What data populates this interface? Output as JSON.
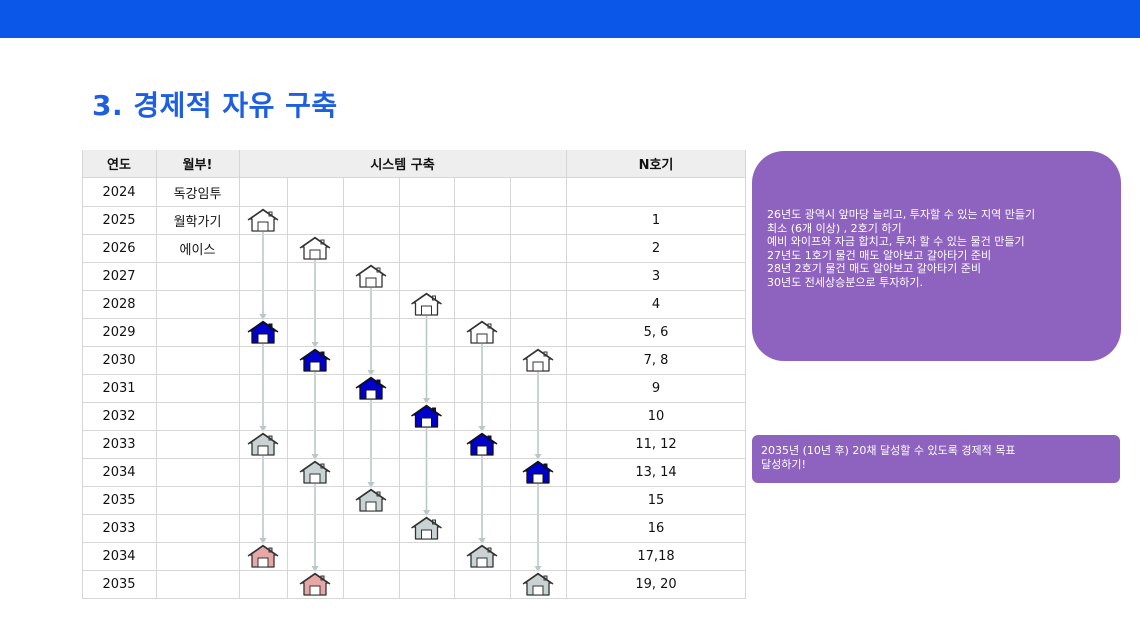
{
  "title": "3. 경제적 자유 구축",
  "table": {
    "headers": [
      "연도",
      "월부!",
      "시스템 구축",
      "N호기"
    ],
    "rows": [
      {
        "year": "2024",
        "label": "독강임투",
        "n": ""
      },
      {
        "year": "2025",
        "label": "월학가기",
        "n": "1"
      },
      {
        "year": "2026",
        "label": "에이스",
        "n": "2"
      },
      {
        "year": "2027",
        "label": "",
        "n": "3"
      },
      {
        "year": "2028",
        "label": "",
        "n": "4"
      },
      {
        "year": "2029",
        "label": "",
        "n": "5, 6"
      },
      {
        "year": "2030",
        "label": "",
        "n": "7, 8"
      },
      {
        "year": "2031",
        "label": "",
        "n": "9"
      },
      {
        "year": "2032",
        "label": "",
        "n": "10"
      },
      {
        "year": "2033",
        "label": "",
        "n": "11, 12"
      },
      {
        "year": "2034",
        "label": "",
        "n": "13, 14"
      },
      {
        "year": "2035",
        "label": "",
        "n": "15"
      },
      {
        "year": "2033",
        "label": "",
        "n": "16"
      },
      {
        "year": "2034",
        "label": "",
        "n": "17,18"
      },
      {
        "year": "2035",
        "label": "",
        "n": "19, 20"
      }
    ]
  },
  "houses": [
    {
      "row": 1,
      "col": 0,
      "style": "outline"
    },
    {
      "row": 5,
      "col": 0,
      "style": "blue"
    },
    {
      "row": 9,
      "col": 0,
      "style": "gray"
    },
    {
      "row": 13,
      "col": 0,
      "style": "pink"
    },
    {
      "row": 2,
      "col": 1,
      "style": "outline"
    },
    {
      "row": 6,
      "col": 1,
      "style": "blue"
    },
    {
      "row": 10,
      "col": 1,
      "style": "gray"
    },
    {
      "row": 14,
      "col": 1,
      "style": "pink"
    },
    {
      "row": 3,
      "col": 2,
      "style": "outline"
    },
    {
      "row": 7,
      "col": 2,
      "style": "blue"
    },
    {
      "row": 11,
      "col": 2,
      "style": "gray"
    },
    {
      "row": 4,
      "col": 3,
      "style": "outline"
    },
    {
      "row": 8,
      "col": 3,
      "style": "blue"
    },
    {
      "row": 12,
      "col": 3,
      "style": "gray"
    },
    {
      "row": 5,
      "col": 4,
      "style": "outline"
    },
    {
      "row": 9,
      "col": 4,
      "style": "blue"
    },
    {
      "row": 13,
      "col": 4,
      "style": "gray"
    },
    {
      "row": 6,
      "col": 5,
      "style": "outline"
    },
    {
      "row": 10,
      "col": 5,
      "style": "blue"
    },
    {
      "row": 14,
      "col": 5,
      "style": "gray"
    }
  ],
  "house_colors": {
    "outline": {
      "fill": "#ffffff",
      "stroke": "#333333",
      "door": "#ffffff"
    },
    "blue": {
      "fill": "#0000cc",
      "stroke": "#111111",
      "door": "#ffffff"
    },
    "gray": {
      "fill": "#c9d3d4",
      "stroke": "#333333",
      "door": "#ffffff"
    },
    "pink": {
      "fill": "#e8a7a7",
      "stroke": "#333333",
      "door": "#ffffff"
    }
  },
  "notes": {
    "plan_lines": [
      "26년도 광역시 앞마당 늘리고, 투자할 수 있는 지역 만들기",
      "최소 (6개 이상) , 2호기 하기",
      "예비 와이프와 자금 합치고, 투자 할 수 있는 물건 만들기",
      "27년도 1호기 물건 매도 알아보고 갈아타기 준비",
      "28년 2호기 물건 매도 알아보고 갈아타기 준비",
      "30년도 전세상승분으로 투자하기."
    ],
    "goal_lines": [
      "2035년 (10년  후) 20채 달성할 수 있도록 경제적 목표",
      "달성하기!"
    ]
  },
  "colors": {
    "topbar": "#0a57e8",
    "title": "#1d5fe0",
    "note_bg": "#8e63c0",
    "arrow": "#b9c8c9"
  }
}
